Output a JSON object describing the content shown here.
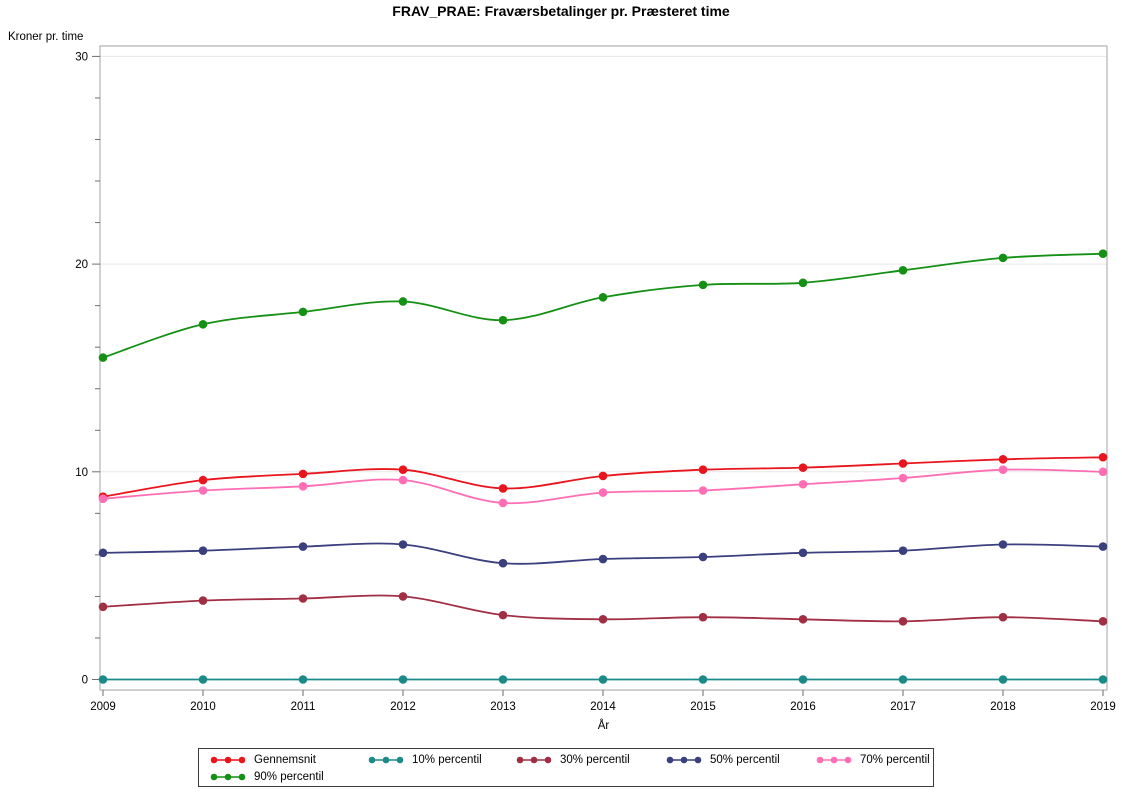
{
  "title": "FRAV_PRAE: Fraværsbetalinger pr. Præsteret time",
  "chart_data": {
    "type": "line",
    "title": "FRAV_PRAE: Fraværsbetalinger pr. Præsteret time",
    "xlabel": "År",
    "ylabel": "Kroner pr. time",
    "x": [
      2009,
      2010,
      2011,
      2012,
      2013,
      2014,
      2015,
      2016,
      2017,
      2018,
      2019
    ],
    "ylim": [
      0,
      30
    ],
    "y_major_ticks": [
      0,
      10,
      20,
      30
    ],
    "y_minor_tick_step": 2,
    "grid": "horizontal-major-only",
    "smooth_lines": true,
    "legend_position": "bottom-outside-boxed",
    "series": [
      {
        "name": "Gennemsnit",
        "color": "#e9151d",
        "values": [
          8.8,
          9.6,
          9.9,
          10.1,
          9.2,
          9.8,
          10.1,
          10.2,
          10.4,
          10.6,
          10.7
        ]
      },
      {
        "name": "10% percentil",
        "color": "#1d8a8a",
        "values": [
          0,
          0,
          0,
          0,
          0,
          0,
          0,
          0,
          0,
          0,
          0
        ]
      },
      {
        "name": "30% percentil",
        "color": "#a12f44",
        "values": [
          3.5,
          3.8,
          3.9,
          4.0,
          3.1,
          2.9,
          3.0,
          2.9,
          2.8,
          3.0,
          2.8
        ]
      },
      {
        "name": "50% percentil",
        "color": "#3a3f7d",
        "values": [
          6.1,
          6.2,
          6.4,
          6.5,
          5.6,
          5.8,
          5.9,
          6.1,
          6.2,
          6.5,
          6.4
        ]
      },
      {
        "name": "70% percentil",
        "color": "#ff6eb4",
        "values": [
          8.7,
          9.1,
          9.3,
          9.6,
          8.5,
          9.0,
          9.1,
          9.4,
          9.7,
          10.1,
          10.0
        ]
      },
      {
        "name": "90% percentil",
        "color": "#149014",
        "values": [
          15.5,
          17.1,
          17.7,
          18.2,
          17.3,
          18.4,
          19.0,
          19.1,
          19.7,
          20.3,
          20.5
        ]
      }
    ],
    "draw_order": [
      0,
      1,
      2,
      3,
      4,
      5
    ],
    "colors": {
      "plot_border": "#a3a3a3",
      "gridline": "#e8e8e8",
      "tick": "#6e6e6e",
      "text": "#000000",
      "background": "#ffffff"
    }
  },
  "legend": {
    "rows": [
      [
        "Gennemsnit",
        "10% percentil",
        "30% percentil",
        "50% percentil",
        "70% percentil"
      ],
      [
        "90% percentil"
      ]
    ]
  }
}
